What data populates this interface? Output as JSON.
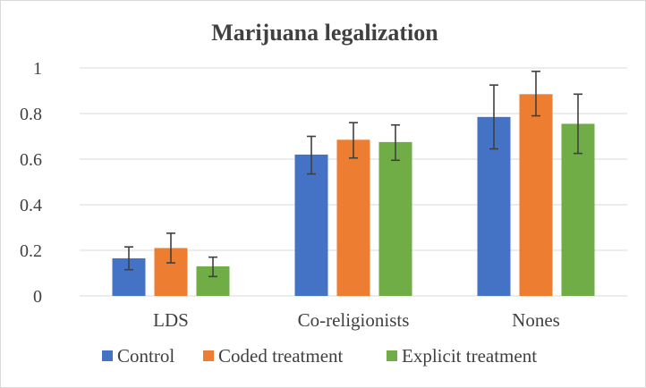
{
  "chart_data": {
    "type": "bar",
    "title": "Marijuana legalization",
    "xlabel": "",
    "ylabel": "",
    "categories": [
      "LDS",
      "Co-religionists",
      "Nones"
    ],
    "series": [
      {
        "name": "Control",
        "color": "#4472c4",
        "values": [
          0.165,
          0.62,
          0.785
        ],
        "error_low": [
          0.115,
          0.535,
          0.645
        ],
        "error_high": [
          0.215,
          0.7,
          0.925
        ]
      },
      {
        "name": "Coded treatment",
        "color": "#ed7d31",
        "values": [
          0.21,
          0.685,
          0.885
        ],
        "error_low": [
          0.145,
          0.605,
          0.79
        ],
        "error_high": [
          0.275,
          0.76,
          0.985
        ]
      },
      {
        "name": "Explicit treatment",
        "color": "#70ad47",
        "values": [
          0.13,
          0.675,
          0.755
        ],
        "error_low": [
          0.085,
          0.595,
          0.625
        ],
        "error_high": [
          0.17,
          0.75,
          0.885
        ]
      }
    ],
    "ylim": [
      0,
      1
    ],
    "yticks": [
      0,
      0.2,
      0.4,
      0.6,
      0.8,
      1
    ],
    "ytick_labels": [
      "0",
      "0.2",
      "0.4",
      "0.6",
      "0.8",
      "1"
    ],
    "grid": true,
    "legend_position": "bottom",
    "colors": {
      "grid": "#d9d9d9",
      "text": "#404040",
      "error_bar": "#404040"
    }
  }
}
